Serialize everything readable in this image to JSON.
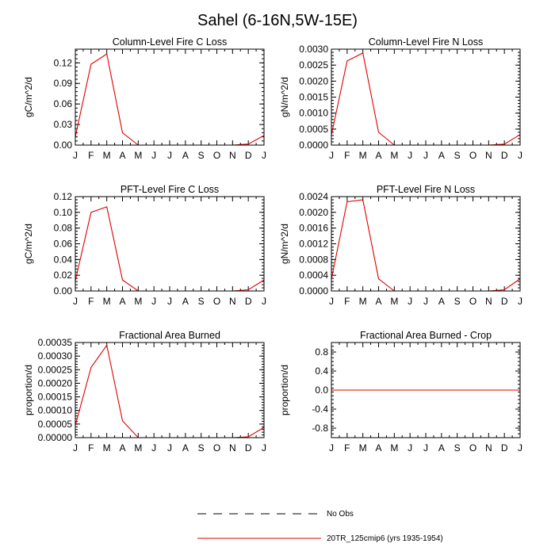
{
  "figure": {
    "title": "Sahel (6-16N,5W-15E)"
  },
  "months": [
    "J",
    "F",
    "M",
    "A",
    "M",
    "J",
    "J",
    "A",
    "S",
    "O",
    "N",
    "D",
    "J"
  ],
  "legend": {
    "entries": [
      {
        "label": "No Obs",
        "style": "dashed",
        "color": "#000000"
      },
      {
        "label": "20TR_125cmip6 (yrs 1935-1954)",
        "style": "solid",
        "color": "#e00000"
      }
    ]
  },
  "chart_data": [
    {
      "type": "line",
      "title": "Column-Level Fire C Loss",
      "ylabel": "gC/m^2/d",
      "ylim": [
        0,
        0.14
      ],
      "yticks": [
        "0.00",
        "0.03",
        "0.06",
        "0.09",
        "0.12"
      ],
      "ytick_values": [
        0,
        0.03,
        0.06,
        0.09,
        0.12
      ],
      "series": [
        {
          "color": "#e00000",
          "values": [
            0.012,
            0.118,
            0.133,
            0.018,
            0.0,
            0.0,
            0.0,
            0.0,
            0.0,
            0.0,
            0.0,
            0.0015,
            0.014
          ]
        }
      ]
    },
    {
      "type": "line",
      "title": "Column-Level Fire N Loss",
      "ylabel": "gN/m^2/d",
      "ylim": [
        0,
        0.003
      ],
      "yticks": [
        "0.0000",
        "0.0005",
        "0.0010",
        "0.0015",
        "0.0020",
        "0.0025",
        "0.0030"
      ],
      "ytick_values": [
        0,
        0.0005,
        0.001,
        0.0015,
        0.002,
        0.0025,
        0.003
      ],
      "series": [
        {
          "color": "#e00000",
          "values": [
            0.00032,
            0.00263,
            0.00288,
            0.0004,
            0.0,
            0.0,
            0.0,
            0.0,
            0.0,
            0.0,
            0.0,
            3e-05,
            0.00033
          ]
        }
      ]
    },
    {
      "type": "line",
      "title": "PFT-Level Fire C Loss",
      "ylabel": "gC/m^2/d",
      "ylim": [
        0,
        0.12
      ],
      "yticks": [
        "0.00",
        "0.02",
        "0.04",
        "0.06",
        "0.08",
        "0.10",
        "0.12"
      ],
      "ytick_values": [
        0,
        0.02,
        0.04,
        0.06,
        0.08,
        0.1,
        0.12
      ],
      "series": [
        {
          "color": "#e00000",
          "values": [
            0.013,
            0.1,
            0.107,
            0.014,
            0.0,
            0.0,
            0.0,
            0.0,
            0.0,
            0.0,
            0.0,
            0.0015,
            0.014
          ]
        }
      ]
    },
    {
      "type": "line",
      "title": "PFT-Level Fire N Loss",
      "ylabel": "gN/m^2/d",
      "ylim": [
        0,
        0.0024
      ],
      "yticks": [
        "0.0000",
        "0.0004",
        "0.0008",
        "0.0012",
        "0.0016",
        "0.0020",
        "0.0024"
      ],
      "ytick_values": [
        0,
        0.0004,
        0.0008,
        0.0012,
        0.0016,
        0.002,
        0.0024
      ],
      "series": [
        {
          "color": "#e00000",
          "values": [
            0.0003,
            0.00227,
            0.00232,
            0.00031,
            0.0,
            0.0,
            0.0,
            0.0,
            0.0,
            0.0,
            0.0,
            3e-05,
            0.00031
          ]
        }
      ]
    },
    {
      "type": "line",
      "title": "Fractional Area Burned",
      "ylabel": "proportion/d",
      "ylim": [
        0,
        0.00035
      ],
      "yticks": [
        "0.00000",
        "0.00005",
        "0.00010",
        "0.00015",
        "0.00020",
        "0.00025",
        "0.00030",
        "0.00035"
      ],
      "ytick_values": [
        0,
        5e-05,
        0.0001,
        0.00015,
        0.0002,
        0.00025,
        0.0003,
        0.00035
      ],
      "series": [
        {
          "color": "#e00000",
          "values": [
            4.5e-05,
            0.000258,
            0.00034,
            6.2e-05,
            0.0,
            0.0,
            0.0,
            0.0,
            0.0,
            0.0,
            0.0,
            3e-06,
            3.8e-05
          ]
        }
      ]
    },
    {
      "type": "line",
      "title": "Fractional Area Burned - Crop",
      "ylabel": "proportion/d",
      "ylim": [
        -1.0,
        1.0
      ],
      "yticks": [
        "-0.8",
        "-0.4",
        "0.0",
        "0.4",
        "0.8"
      ],
      "ytick_values": [
        -0.8,
        -0.4,
        0.0,
        0.4,
        0.8
      ],
      "series": [
        {
          "color": "#e00000",
          "values": [
            0,
            0,
            0,
            0,
            0,
            0,
            0,
            0,
            0,
            0,
            0,
            0,
            0
          ]
        }
      ]
    }
  ]
}
